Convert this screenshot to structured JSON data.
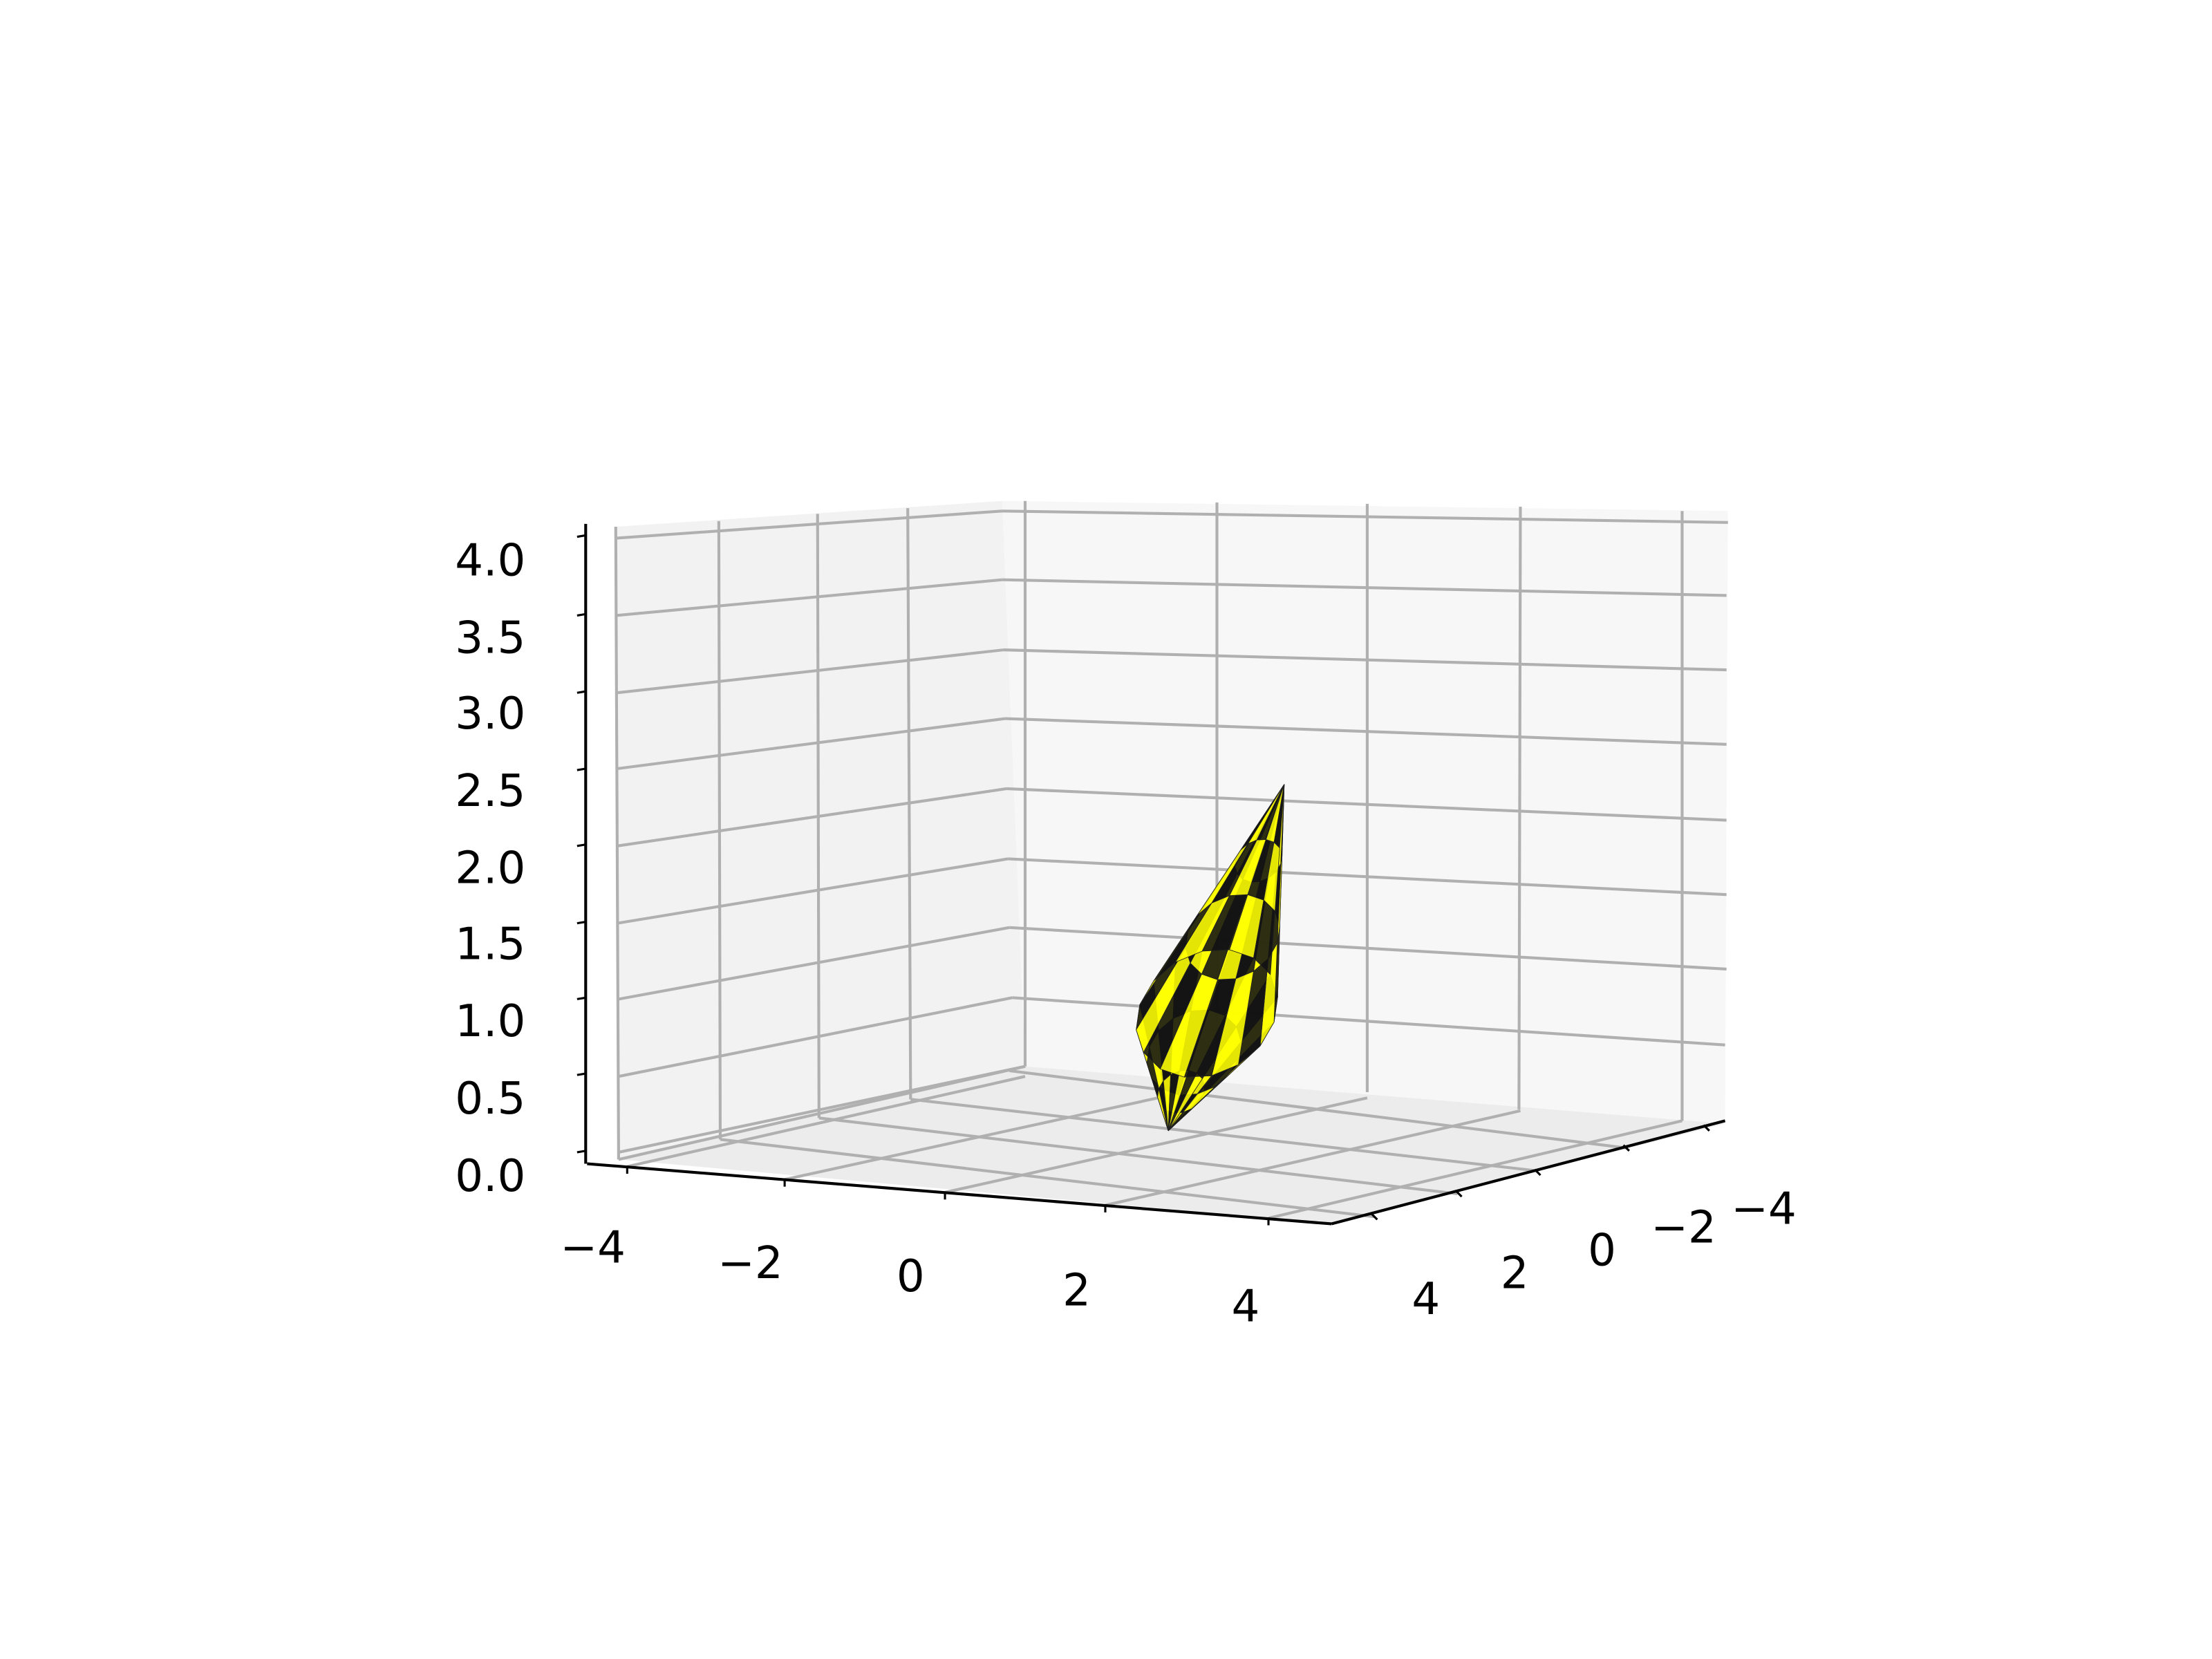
{
  "chart_data": {
    "type": "surface3d",
    "title": "",
    "xlabel": "",
    "ylabel": "",
    "zlabel": "",
    "xlim": [
      -5,
      5
    ],
    "ylim": [
      -5,
      5
    ],
    "zlim": [
      0,
      4
    ],
    "grid": true,
    "x_ticks": [
      "−4",
      "−2",
      "0",
      "2",
      "4"
    ],
    "y_ticks": [
      "−4",
      "−2",
      "0",
      "2",
      "4"
    ],
    "z_ticks": [
      "0.0",
      "0.5",
      "1.0",
      "1.5",
      "2.0",
      "2.5",
      "3.0",
      "3.5",
      "4.0"
    ],
    "surface": {
      "shape": "cone",
      "base_center": [
        0.8,
        -0.2,
        0.75
      ],
      "base_radius": 0.75,
      "apex": [
        1.0,
        -0.3,
        2.55
      ],
      "rim_low_point": [
        0.3,
        0.7,
        0.0
      ],
      "colors": [
        "#ffff00",
        "#111111"
      ],
      "pattern": "checkerboard"
    }
  }
}
